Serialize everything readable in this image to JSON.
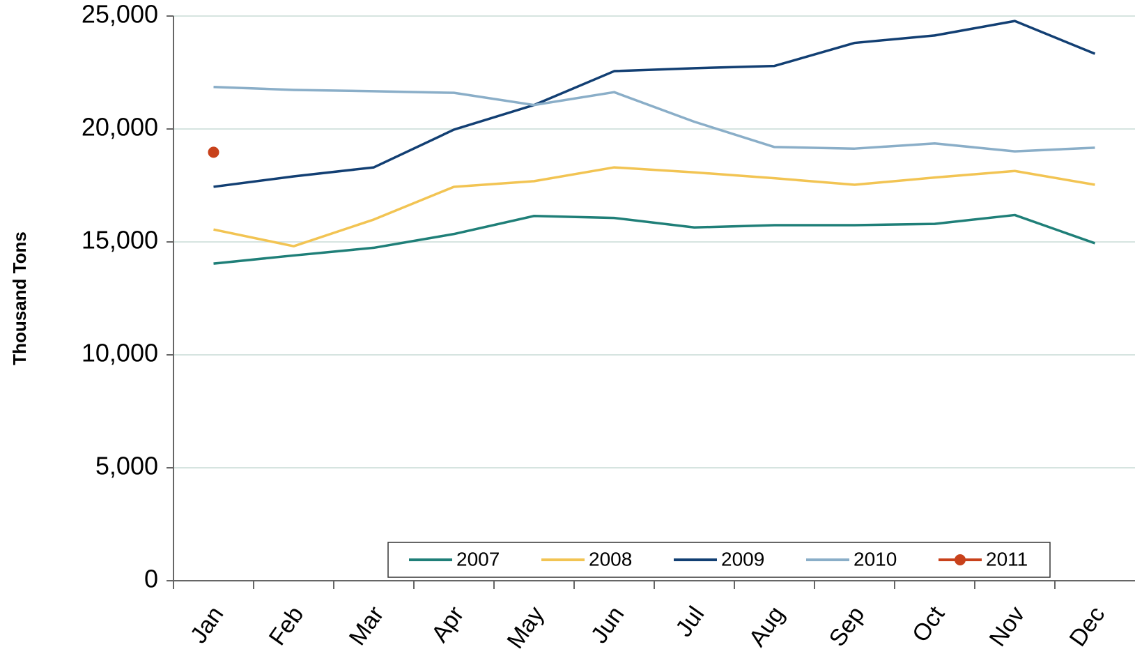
{
  "chart_data": {
    "type": "line",
    "y_label": "Thousand Tons",
    "categories": [
      "Jan",
      "Feb",
      "Mar",
      "Apr",
      "May",
      "Jun",
      "Jul",
      "Aug",
      "Sep",
      "Oct",
      "Nov",
      "Dec"
    ],
    "series": [
      {
        "name": "2007",
        "color": "#1f7f78",
        "values": [
          14040,
          14400,
          14740,
          15350,
          16150,
          16060,
          15640,
          15740,
          15740,
          15800,
          16190,
          14940
        ]
      },
      {
        "name": "2008",
        "color": "#f2c453",
        "values": [
          15550,
          14810,
          15990,
          17440,
          17690,
          18300,
          18080,
          17820,
          17530,
          17850,
          18140,
          17530
        ]
      },
      {
        "name": "2009",
        "color": "#123f73",
        "values": [
          17440,
          17900,
          18300,
          19970,
          21060,
          22560,
          22690,
          22790,
          23810,
          24140,
          24780,
          23330
        ]
      },
      {
        "name": "2010",
        "color": "#8aaec8",
        "values": [
          21860,
          21730,
          21670,
          21600,
          21060,
          21630,
          20320,
          19200,
          19130,
          19360,
          19010,
          19170
        ]
      },
      {
        "name": "2011",
        "color": "#c8411b",
        "marker": true,
        "values": [
          18970,
          null,
          null,
          null,
          null,
          null,
          null,
          null,
          null,
          null,
          null,
          null
        ]
      }
    ],
    "ylim": [
      0,
      25000
    ],
    "yticks": [
      {
        "value": 0,
        "label": "0"
      },
      {
        "value": 5000,
        "label": "5,000"
      },
      {
        "value": 10000,
        "label": "10,000"
      },
      {
        "value": 15000,
        "label": "15,000"
      },
      {
        "value": 20000,
        "label": "20,000"
      },
      {
        "value": 25000,
        "label": "25,000"
      }
    ],
    "grid": true,
    "legend": "bottom"
  }
}
